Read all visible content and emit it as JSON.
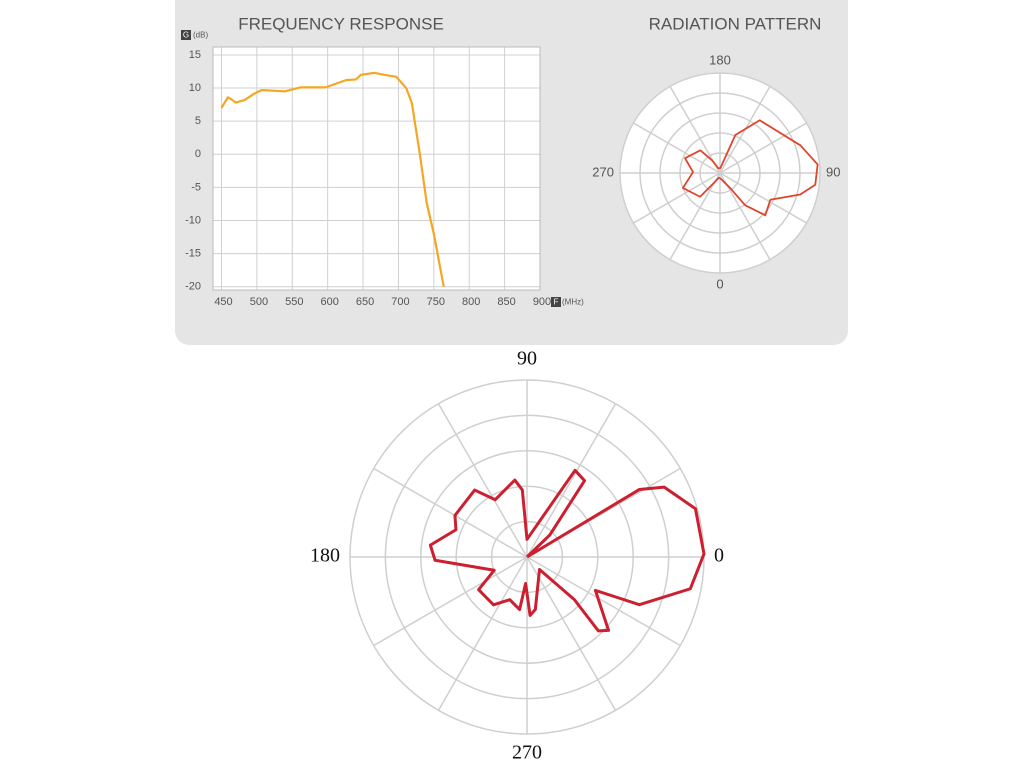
{
  "chart_data": [
    {
      "type": "line",
      "title": "FREQUENCY RESPONSE",
      "y_label": "G",
      "y_unit": "(dB)",
      "x_label": "F",
      "x_unit": "(MHz)",
      "x": [
        450,
        459,
        464,
        470,
        483,
        497,
        507,
        540,
        561,
        597,
        626,
        640,
        647,
        666,
        680,
        697,
        711,
        719,
        730,
        740,
        750,
        764
      ],
      "values": [
        7.0,
        8.6,
        8.3,
        7.8,
        8.2,
        9.2,
        9.7,
        9.5,
        10.1,
        10.1,
        11.2,
        11.3,
        12.0,
        12.3,
        12.0,
        11.7,
        10.0,
        7.7,
        0.2,
        -7.4,
        -12,
        -20
      ],
      "color": "#f5a623",
      "xlim": [
        438,
        900
      ],
      "ylim": [
        -20.5,
        16.2
      ],
      "xticks": [
        450,
        500,
        550,
        600,
        650,
        700,
        750,
        800,
        850,
        900
      ],
      "yticks": [
        15,
        10,
        5,
        0,
        -5,
        -10,
        -15,
        -20
      ],
      "grid": true
    },
    {
      "type": "polar",
      "title": "RADIATION PATTERN",
      "theta": [
        0,
        34,
        38,
        47,
        62,
        75,
        83,
        95,
        109,
        143,
        158,
        175,
        200,
        212,
        221,
        247,
        268,
        292,
        320,
        326,
        345,
        360
      ],
      "r": [
        0.05,
        0.18,
        0.41,
        0.62,
        0.57,
        0.83,
        0.96,
        0.98,
        0.85,
        0.66,
        0.41,
        0.05,
        0.05,
        0.15,
        0.3,
        0.38,
        0.27,
        0.4,
        0.31,
        0.14,
        0.05,
        0.05
      ],
      "color": "#e0452b",
      "rlim": [
        0,
        1
      ],
      "rticks": [
        0.2,
        0.4,
        0.6,
        0.8,
        1.0
      ],
      "thetaticks": [
        180,
        90,
        0,
        270
      ],
      "theta_grid": [
        0,
        30,
        60,
        90,
        120,
        150,
        180,
        210,
        240,
        270,
        300,
        330
      ],
      "theta_zero": "bottom",
      "theta_direction": "counterclockwise"
    },
    {
      "type": "polar",
      "theta": [
        30,
        31,
        27,
        16,
        1,
        349,
        337,
        334,
        318,
        314,
        318,
        315,
        279,
        273,
        267,
        262,
        248,
        235,
        214,
        202,
        182,
        173,
        159,
        150,
        128,
        119,
        99,
        94,
        90,
        61,
        53,
        44,
        30
      ],
      "r": [
        0,
        0.74,
        0.87,
        0.99,
        1.0,
        0.94,
        0.69,
        0.43,
        0.62,
        0.58,
        0.36,
        0.1,
        0.3,
        0.33,
        0.15,
        0.3,
        0.26,
        0.33,
        0.33,
        0.2,
        0.52,
        0.55,
        0.43,
        0.47,
        0.48,
        0.37,
        0.44,
        0.38,
        0.1,
        0.56,
        0.54,
        0.18,
        0
      ],
      "color": "#cc1f2f",
      "rlim": [
        0,
        1
      ],
      "rticks": [
        0.2,
        0.4,
        0.6,
        0.8,
        1.0
      ],
      "thetaticks": [
        90,
        0,
        180,
        270
      ],
      "theta_grid": [
        0,
        30,
        60,
        90,
        120,
        150,
        180,
        210,
        240,
        270,
        300,
        330
      ],
      "theta_zero": "right",
      "theta_direction": "counterclockwise"
    }
  ]
}
